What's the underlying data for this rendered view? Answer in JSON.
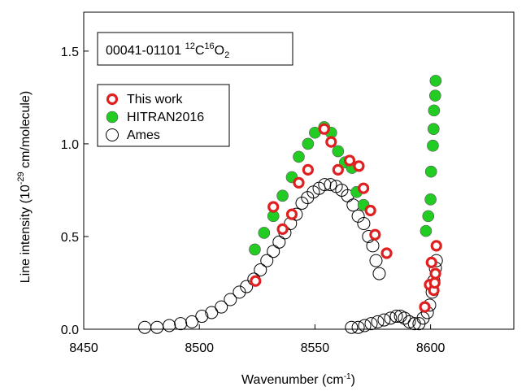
{
  "chart_data": {
    "type": "scatter",
    "annotation": {
      "parts": [
        "00041-01101 ",
        "12",
        "C",
        "16",
        "O",
        "2"
      ]
    },
    "y_label": {
      "parts": [
        "Line intensity (10",
        "-29",
        " cm/molecule)"
      ]
    },
    "x_label": {
      "parts": [
        "Wavenumber (cm",
        "-1",
        ")"
      ]
    },
    "xlim": [
      8450,
      8636
    ],
    "ylim": [
      0,
      1.71
    ],
    "xticks": [
      8450,
      8500,
      8550,
      8600
    ],
    "yticks": [
      {
        "value": 0,
        "label": "0.0"
      },
      0.5,
      {
        "value": 1,
        "label": "1.0"
      },
      1.5
    ],
    "legend": "upper left",
    "series": [
      {
        "name": "This work",
        "color": "#e02020",
        "marker": "ring",
        "x": [
          8524.3,
          8532,
          8536,
          8540,
          8543,
          8547,
          8554,
          8557,
          8560,
          8565,
          8569,
          8571,
          8574,
          8576,
          8581,
          8597.5,
          8599.6,
          8600.4,
          8601.4,
          8601.8,
          8602.1,
          8602.5
        ],
        "values": [
          0.26,
          0.66,
          0.54,
          0.62,
          0.79,
          0.86,
          1.08,
          1.01,
          0.86,
          0.91,
          0.88,
          0.76,
          0.64,
          0.51,
          0.41,
          0.12,
          0.24,
          0.36,
          0.21,
          0.25,
          0.3,
          0.45
        ]
      },
      {
        "name": "HITRAN2016",
        "color": "#22cc22",
        "marker": "filled",
        "x": [
          8524,
          8528,
          8532,
          8536,
          8540,
          8543,
          8547,
          8550,
          8554,
          8557,
          8560,
          8563,
          8566,
          8568,
          8571,
          8598,
          8599,
          8600,
          8600.2,
          8601,
          8601.3,
          8601.5,
          8602,
          8602.2
        ],
        "values": [
          0.43,
          0.52,
          0.61,
          0.72,
          0.82,
          0.93,
          1.0,
          1.06,
          1.09,
          1.06,
          0.96,
          0.9,
          0.87,
          0.74,
          0.67,
          0.53,
          0.61,
          0.7,
          0.85,
          0.99,
          1.08,
          1.18,
          1.26,
          1.34
        ]
      },
      {
        "name": "Ames",
        "color": "#000000",
        "marker": "open",
        "x": [
          8476.4,
          8481.7,
          8487,
          8491.9,
          8496.8,
          8501.1,
          8505.3,
          8509.5,
          8513.4,
          8517.3,
          8520.4,
          8523.6,
          8526.4,
          8529.2,
          8532,
          8534.5,
          8537,
          8539.4,
          8541.9,
          8544.4,
          8546.8,
          8549.3,
          8551.8,
          8554.2,
          8556.7,
          8559.2,
          8561.6,
          8564.1,
          8566.5,
          8568.7,
          8571.1,
          8573.2,
          8575,
          8576.4,
          8577.8,
          8565.8,
          8568.7,
          8571.5,
          8574.3,
          8577.1,
          8579.9,
          8582.7,
          8585.2,
          8587,
          8588.7,
          8590.8,
          8593,
          8595,
          8596.8,
          8598.6,
          8599.6,
          8600.7,
          8601.4,
          8602.1,
          8602.5
        ],
        "values": [
          0.01,
          0.01,
          0.02,
          0.03,
          0.04,
          0.07,
          0.09,
          0.12,
          0.16,
          0.2,
          0.23,
          0.27,
          0.32,
          0.37,
          0.42,
          0.47,
          0.52,
          0.57,
          0.62,
          0.68,
          0.71,
          0.74,
          0.76,
          0.78,
          0.78,
          0.77,
          0.75,
          0.72,
          0.67,
          0.61,
          0.57,
          0.5,
          0.45,
          0.37,
          0.3,
          0.01,
          0.01,
          0.02,
          0.03,
          0.04,
          0.05,
          0.06,
          0.07,
          0.07,
          0.06,
          0.04,
          0.03,
          0.03,
          0.06,
          0.09,
          0.13,
          0.2,
          0.26,
          0.33,
          0.37
        ]
      }
    ]
  }
}
